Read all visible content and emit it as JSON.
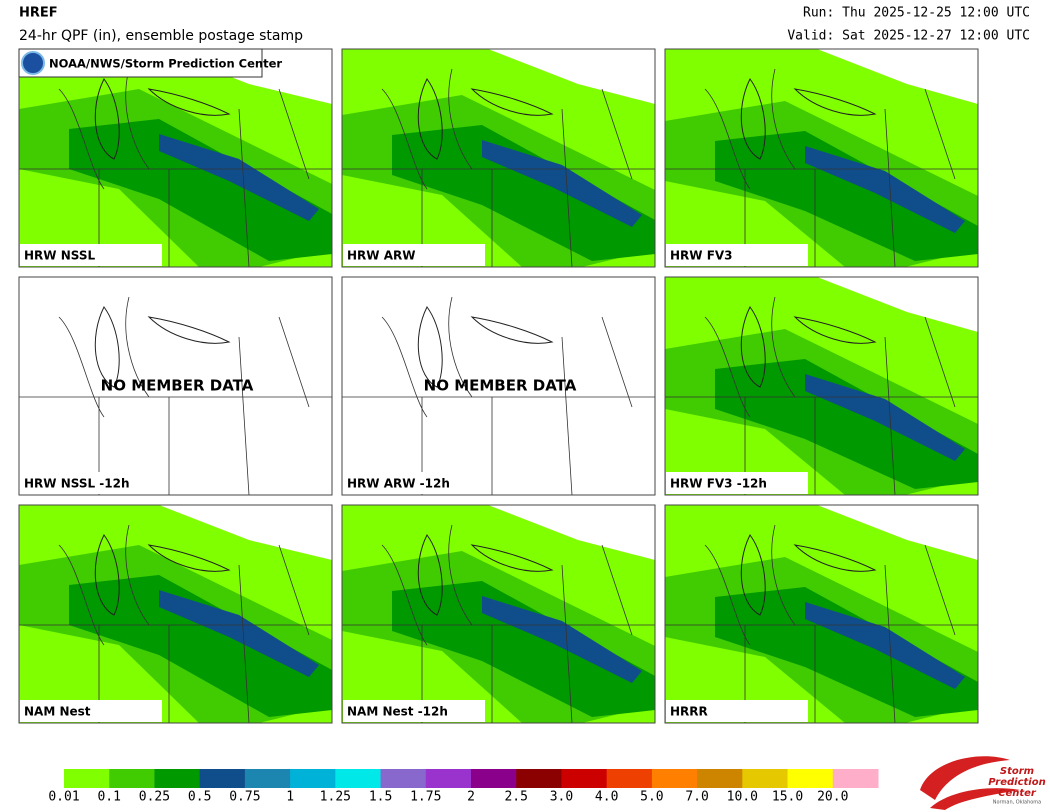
{
  "header": {
    "title": "HREF",
    "subtitle": "24-hr QPF (in), ensemble postage stamp",
    "run": "Run: Thu 2025-12-25 12:00 UTC",
    "valid": "Valid: Sat 2025-12-27 12:00 UTC",
    "logo": "NOAA/NWS/Storm Prediction Center"
  },
  "panels": [
    {
      "label": "HRW NSSL"
    },
    {
      "label": "HRW ARW"
    },
    {
      "label": "HRW FV3"
    },
    {
      "label": "HRW NSSL -12h",
      "message": "NO MEMBER DATA"
    },
    {
      "label": "HRW ARW -12h",
      "message": "NO MEMBER DATA"
    },
    {
      "label": "HRW FV3 -12h"
    },
    {
      "label": "NAM Nest"
    },
    {
      "label": "NAM Nest -12h"
    },
    {
      "label": "HRRR"
    }
  ],
  "legend": {
    "items": [
      {
        "label": "0.01",
        "color": "#80ff00"
      },
      {
        "label": "0.1",
        "color": "#40cc00"
      },
      {
        "label": "0.25",
        "color": "#009900"
      },
      {
        "label": "0.5",
        "color": "#104e8b"
      },
      {
        "label": "0.75",
        "color": "#1c86b0"
      },
      {
        "label": "1",
        "color": "#00b2d8"
      },
      {
        "label": "1.25",
        "color": "#00e8e8"
      },
      {
        "label": "1.5",
        "color": "#8968cd"
      },
      {
        "label": "1.75",
        "color": "#9a32cd"
      },
      {
        "label": "2",
        "color": "#8b008b"
      },
      {
        "label": "2.5",
        "color": "#8b0000"
      },
      {
        "label": "3.0",
        "color": "#cd0000"
      },
      {
        "label": "4.0",
        "color": "#ee4000"
      },
      {
        "label": "5.0",
        "color": "#ff7f00"
      },
      {
        "label": "7.0",
        "color": "#cd8500"
      },
      {
        "label": "10.0",
        "color": "#e6c800"
      },
      {
        "label": "15.0",
        "color": "#ffff00"
      },
      {
        "label": "20.0",
        "color": "#ffaec9"
      }
    ]
  },
  "footer_logo": {
    "lines": [
      "Storm",
      "Prediction",
      "Center"
    ],
    "location": "Norman, Oklahoma"
  }
}
